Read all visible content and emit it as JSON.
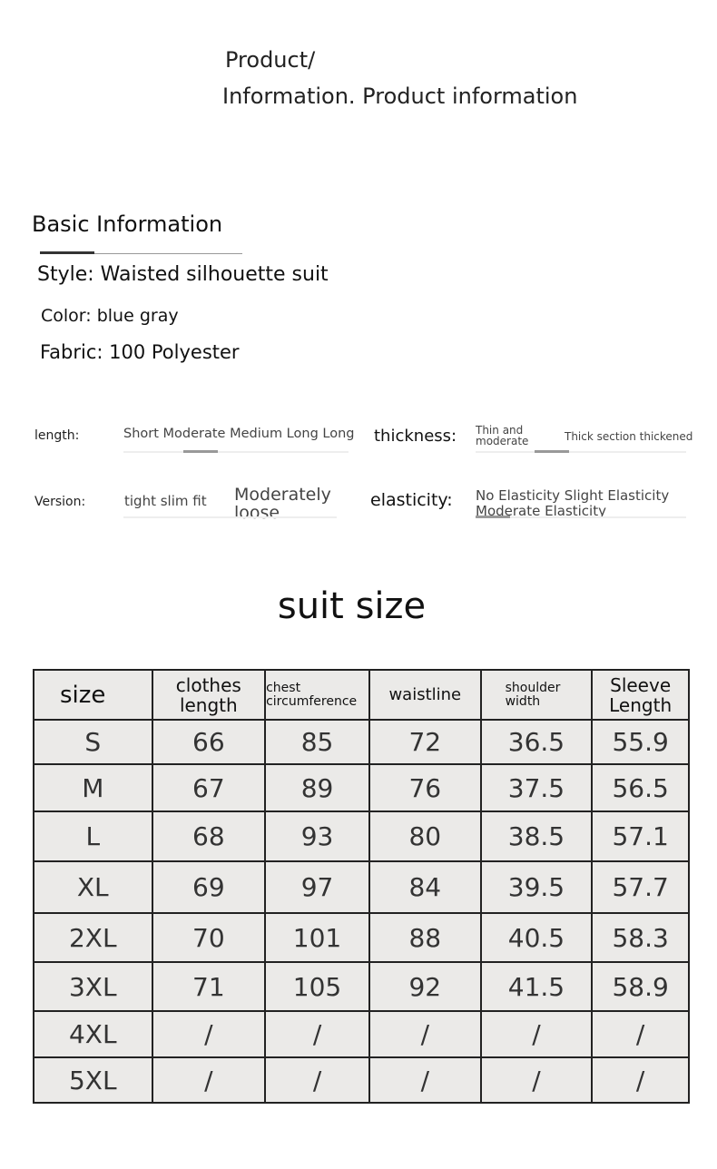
{
  "header": {
    "line1": "Product/",
    "line2": "Information. Product information"
  },
  "basic": {
    "title": "Basic Information",
    "style": "Style: Waisted silhouette suit",
    "color": "Color: blue gray",
    "fabric": "Fabric: 100 Polyester"
  },
  "attributes": {
    "length": {
      "label": "length:",
      "options": "Short Moderate Medium Long Long",
      "selected": "Moderate"
    },
    "thickness": {
      "label": "thickness:",
      "option1": "Thin and moderate",
      "option2": "Thick section thickened",
      "selected": "Thin and moderate"
    },
    "version": {
      "label": "Version:",
      "option1": "tight slim fit",
      "option2": "Moderately loose",
      "selected": "Moderately loose"
    },
    "elasticity": {
      "label": "elasticity:",
      "options": "No Elasticity Slight Elasticity Moderate Elasticity",
      "selected": "Moderate Elasticity"
    }
  },
  "size_title": "suit size",
  "table": {
    "headers": [
      "size",
      "clothes length",
      "chest circumference",
      "waistline",
      "shoulder width",
      "Sleeve Length"
    ],
    "rows": [
      [
        "S",
        "66",
        "85",
        "72",
        "36.5",
        "55.9"
      ],
      [
        "M",
        "67",
        "89",
        "76",
        "37.5",
        "56.5"
      ],
      [
        "L",
        "68",
        "93",
        "80",
        "38.5",
        "57.1"
      ],
      [
        "XL",
        "69",
        "97",
        "84",
        "39.5",
        "57.7"
      ],
      [
        "2XL",
        "70",
        "101",
        "88",
        "40.5",
        "58.3"
      ],
      [
        "3XL",
        "71",
        "105",
        "92",
        "41.5",
        "58.9"
      ],
      [
        "4XL",
        "/",
        "/",
        "/",
        "/",
        "/"
      ],
      [
        "5XL",
        "/",
        "/",
        "/",
        "/",
        "/"
      ]
    ]
  }
}
